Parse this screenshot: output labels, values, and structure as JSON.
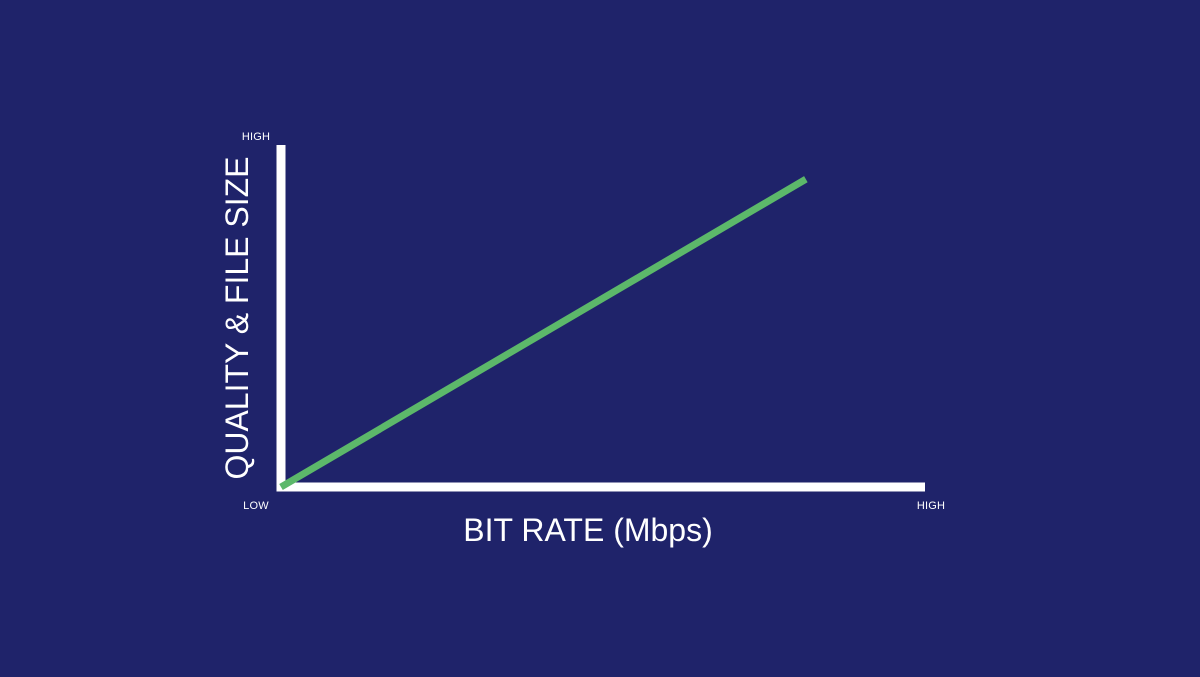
{
  "chart_data": {
    "type": "line",
    "title": "",
    "xlabel": "BIT RATE (Mbps)",
    "ylabel": "QUALITY & FILE SIZE",
    "x_tick_labels": {
      "low": "LOW",
      "high": "HIGH"
    },
    "y_tick_labels": {
      "high": "HIGH"
    },
    "xlim": [
      0,
      1
    ],
    "ylim": [
      0,
      1
    ],
    "grid": false,
    "legend": "none",
    "series": [
      {
        "x": [
          0,
          0.815
        ],
        "y": [
          0,
          0.9
        ]
      }
    ],
    "colors": {
      "background": "#1f236a",
      "axes": "#ffffff",
      "series": "#5cb86a"
    }
  }
}
